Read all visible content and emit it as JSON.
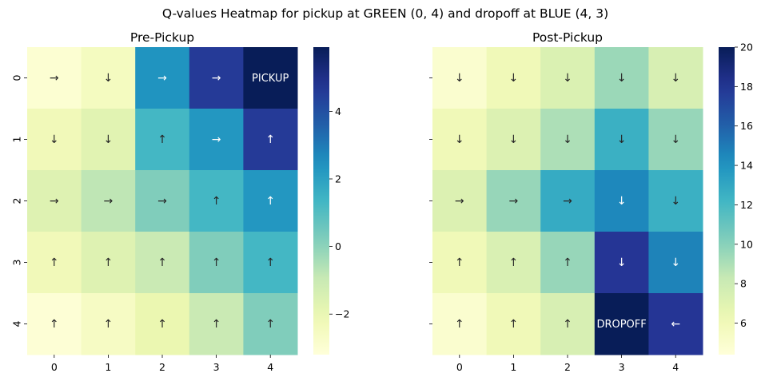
{
  "title": "Q-values Heatmap for pickup at GREEN (0, 4) and dropoff at BLUE (4, 3)",
  "chart_data": [
    {
      "type": "heatmap",
      "title": "Pre-Pickup",
      "x_categories": [
        "0",
        "1",
        "2",
        "3",
        "4"
      ],
      "y_categories": [
        "0",
        "1",
        "2",
        "3",
        "4"
      ],
      "colormap": "YlGnBu",
      "vmin": -3.2,
      "vmax": 5.9,
      "colorbar_ticks": [
        "−2",
        "0",
        "2",
        "4"
      ],
      "colorbar_tick_values": [
        -2,
        0,
        2,
        4
      ],
      "values": [
        [
          -3.0,
          -2.5,
          2.4,
          4.6,
          5.9
        ],
        [
          -2.3,
          -1.7,
          1.3,
          2.3,
          4.6
        ],
        [
          -1.6,
          -0.8,
          0.2,
          1.3,
          2.3
        ],
        [
          -2.3,
          -1.6,
          -1.0,
          0.2,
          1.3
        ],
        [
          -3.1,
          -2.6,
          -2.0,
          -1.0,
          0.2
        ]
      ],
      "annotations": [
        [
          "→",
          "↓",
          "→",
          "→",
          "PICKUP"
        ],
        [
          "↓",
          "↓",
          "↑",
          "→",
          "↑"
        ],
        [
          "→",
          "→",
          "→",
          "↑",
          "↑"
        ],
        [
          "↑",
          "↑",
          "↑",
          "↑",
          "↑"
        ],
        [
          "↑",
          "↑",
          "↑",
          "↑",
          "↑"
        ]
      ]
    },
    {
      "type": "heatmap",
      "title": "Post-Pickup",
      "x_categories": [
        "0",
        "1",
        "2",
        "3",
        "4"
      ],
      "y_categories": [
        "0",
        "1",
        "2",
        "3",
        "4"
      ],
      "colormap": "YlGnBu",
      "vmin": 4.4,
      "vmax": 20,
      "colorbar_ticks": [
        "6",
        "8",
        "10",
        "12",
        "14",
        "16",
        "18",
        "20"
      ],
      "colorbar_tick_values": [
        6,
        8,
        10,
        12,
        14,
        16,
        18,
        20
      ],
      "values": [
        [
          4.9,
          6.0,
          7.3,
          9.5,
          7.5
        ],
        [
          6.0,
          7.2,
          9.0,
          12.5,
          9.6
        ],
        [
          7.2,
          9.6,
          12.8,
          14.5,
          12.5
        ],
        [
          6.0,
          7.4,
          9.6,
          18.0,
          14.7
        ],
        [
          4.9,
          6.0,
          7.5,
          20.0,
          18.0
        ]
      ],
      "annotations": [
        [
          "↓",
          "↓",
          "↓",
          "↓",
          "↓"
        ],
        [
          "↓",
          "↓",
          "↓",
          "↓",
          "↓"
        ],
        [
          "→",
          "→",
          "→",
          "↓",
          "↓"
        ],
        [
          "↑",
          "↑",
          "↑",
          "↓",
          "↓"
        ],
        [
          "↑",
          "↑",
          "↑",
          "DROPOFF",
          "←"
        ]
      ]
    }
  ]
}
